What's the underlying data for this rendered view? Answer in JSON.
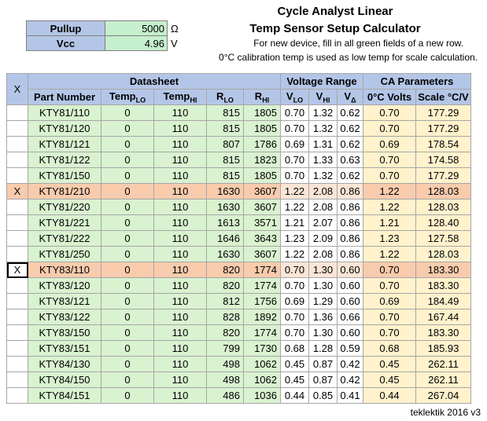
{
  "params": [
    {
      "label": "Pullup",
      "value": "5000",
      "unit": "Ω"
    },
    {
      "label": "Vcc",
      "value": "4.96",
      "unit": "V"
    }
  ],
  "title1": "Cycle Analyst Linear",
  "title2": "Temp Sensor Setup Calculator",
  "note1": "For new device, fill in all green fields of a new row.",
  "note2": "0°C calibration temp is used as low temp for scale calculation.",
  "header": {
    "x": "X",
    "datasheet": "Datasheet",
    "voltage_range": "Voltage Range",
    "ca_parameters": "CA Parameters",
    "part_number": "Part Number",
    "temp": "Temp",
    "lo": "LO",
    "hi": "HI",
    "r": "R",
    "v": "V",
    "delta": "Δ",
    "zero_c_volts": "0°C Volts",
    "scale": "Scale °C/V"
  },
  "rows": [
    {
      "x": "",
      "part": "KTY81/110",
      "tlo": "0",
      "thi": "110",
      "rlo": "815",
      "rhi": "1805",
      "vlo": "0.70",
      "vhi": "1.32",
      "vd": "0.62",
      "v0": "0.70",
      "scale": "177.29"
    },
    {
      "x": "",
      "part": "KTY81/120",
      "tlo": "0",
      "thi": "110",
      "rlo": "815",
      "rhi": "1805",
      "vlo": "0.70",
      "vhi": "1.32",
      "vd": "0.62",
      "v0": "0.70",
      "scale": "177.29"
    },
    {
      "x": "",
      "part": "KTY81/121",
      "tlo": "0",
      "thi": "110",
      "rlo": "807",
      "rhi": "1786",
      "vlo": "0.69",
      "vhi": "1.31",
      "vd": "0.62",
      "v0": "0.69",
      "scale": "178.54"
    },
    {
      "x": "",
      "part": "KTY81/122",
      "tlo": "0",
      "thi": "110",
      "rlo": "815",
      "rhi": "1823",
      "vlo": "0.70",
      "vhi": "1.33",
      "vd": "0.63",
      "v0": "0.70",
      "scale": "174.58"
    },
    {
      "x": "",
      "part": "KTY81/150",
      "tlo": "0",
      "thi": "110",
      "rlo": "815",
      "rhi": "1805",
      "vlo": "0.70",
      "vhi": "1.32",
      "vd": "0.62",
      "v0": "0.70",
      "scale": "177.29"
    },
    {
      "x": "X",
      "part": "KTY81/210",
      "tlo": "0",
      "thi": "110",
      "rlo": "1630",
      "rhi": "3607",
      "vlo": "1.22",
      "vhi": "2.08",
      "vd": "0.86",
      "v0": "1.22",
      "scale": "128.03",
      "sel": true
    },
    {
      "x": "",
      "part": "KTY81/220",
      "tlo": "0",
      "thi": "110",
      "rlo": "1630",
      "rhi": "3607",
      "vlo": "1.22",
      "vhi": "2.08",
      "vd": "0.86",
      "v0": "1.22",
      "scale": "128.03"
    },
    {
      "x": "",
      "part": "KTY81/221",
      "tlo": "0",
      "thi": "110",
      "rlo": "1613",
      "rhi": "3571",
      "vlo": "1.21",
      "vhi": "2.07",
      "vd": "0.86",
      "v0": "1.21",
      "scale": "128.40"
    },
    {
      "x": "",
      "part": "KTY81/222",
      "tlo": "0",
      "thi": "110",
      "rlo": "1646",
      "rhi": "3643",
      "vlo": "1.23",
      "vhi": "2.09",
      "vd": "0.86",
      "v0": "1.23",
      "scale": "127.58"
    },
    {
      "x": "",
      "part": "KTY81/250",
      "tlo": "0",
      "thi": "110",
      "rlo": "1630",
      "rhi": "3607",
      "vlo": "1.22",
      "vhi": "2.08",
      "vd": "0.86",
      "v0": "1.22",
      "scale": "128.03"
    },
    {
      "x": "X",
      "part": "KTY83/110",
      "tlo": "0",
      "thi": "110",
      "rlo": "820",
      "rhi": "1774",
      "vlo": "0.70",
      "vhi": "1.30",
      "vd": "0.60",
      "v0": "0.70",
      "scale": "183.30",
      "sel": true,
      "active": true
    },
    {
      "x": "",
      "part": "KTY83/120",
      "tlo": "0",
      "thi": "110",
      "rlo": "820",
      "rhi": "1774",
      "vlo": "0.70",
      "vhi": "1.30",
      "vd": "0.60",
      "v0": "0.70",
      "scale": "183.30"
    },
    {
      "x": "",
      "part": "KTY83/121",
      "tlo": "0",
      "thi": "110",
      "rlo": "812",
      "rhi": "1756",
      "vlo": "0.69",
      "vhi": "1.29",
      "vd": "0.60",
      "v0": "0.69",
      "scale": "184.49"
    },
    {
      "x": "",
      "part": "KTY83/122",
      "tlo": "0",
      "thi": "110",
      "rlo": "828",
      "rhi": "1892",
      "vlo": "0.70",
      "vhi": "1.36",
      "vd": "0.66",
      "v0": "0.70",
      "scale": "167.44"
    },
    {
      "x": "",
      "part": "KTY83/150",
      "tlo": "0",
      "thi": "110",
      "rlo": "820",
      "rhi": "1774",
      "vlo": "0.70",
      "vhi": "1.30",
      "vd": "0.60",
      "v0": "0.70",
      "scale": "183.30"
    },
    {
      "x": "",
      "part": "KTY83/151",
      "tlo": "0",
      "thi": "110",
      "rlo": "799",
      "rhi": "1730",
      "vlo": "0.68",
      "vhi": "1.28",
      "vd": "0.59",
      "v0": "0.68",
      "scale": "185.93"
    },
    {
      "x": "",
      "part": "KTY84/130",
      "tlo": "0",
      "thi": "110",
      "rlo": "498",
      "rhi": "1062",
      "vlo": "0.45",
      "vhi": "0.87",
      "vd": "0.42",
      "v0": "0.45",
      "scale": "262.11"
    },
    {
      "x": "",
      "part": "KTY84/150",
      "tlo": "0",
      "thi": "110",
      "rlo": "498",
      "rhi": "1062",
      "vlo": "0.45",
      "vhi": "0.87",
      "vd": "0.42",
      "v0": "0.45",
      "scale": "262.11"
    },
    {
      "x": "",
      "part": "KTY84/151",
      "tlo": "0",
      "thi": "110",
      "rlo": "486",
      "rhi": "1036",
      "vlo": "0.44",
      "vhi": "0.85",
      "vd": "0.41",
      "v0": "0.44",
      "scale": "267.04"
    }
  ],
  "footer": "teklektik 2016 v3"
}
